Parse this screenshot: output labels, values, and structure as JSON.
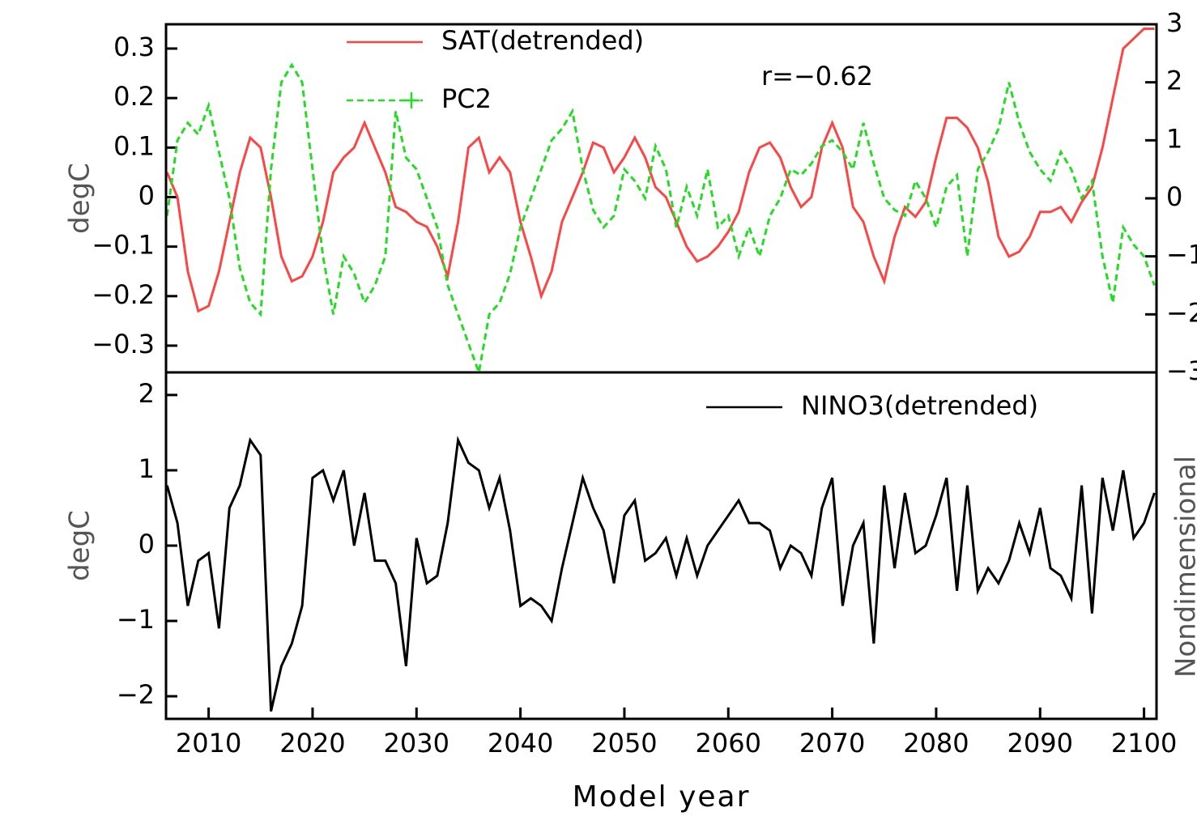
{
  "chart_data": [
    {
      "type": "line",
      "ylabel": "degC",
      "y2label": "Nondimensional",
      "annotation": "r=−0.62",
      "x": [
        2006,
        2007,
        2008,
        2009,
        2010,
        2011,
        2012,
        2013,
        2014,
        2015,
        2016,
        2017,
        2018,
        2019,
        2020,
        2021,
        2022,
        2023,
        2024,
        2025,
        2026,
        2027,
        2028,
        2029,
        2030,
        2031,
        2032,
        2033,
        2034,
        2035,
        2036,
        2037,
        2038,
        2039,
        2040,
        2041,
        2042,
        2043,
        2044,
        2045,
        2046,
        2047,
        2048,
        2049,
        2050,
        2051,
        2052,
        2053,
        2054,
        2055,
        2056,
        2057,
        2058,
        2059,
        2060,
        2061,
        2062,
        2063,
        2064,
        2065,
        2066,
        2067,
        2068,
        2069,
        2070,
        2071,
        2072,
        2073,
        2074,
        2075,
        2076,
        2077,
        2078,
        2079,
        2080,
        2081,
        2082,
        2083,
        2084,
        2085,
        2086,
        2087,
        2088,
        2089,
        2090,
        2091,
        2092,
        2093,
        2094,
        2095,
        2096,
        2097,
        2098,
        2099,
        2100,
        2101
      ],
      "xlim": [
        2005.9,
        2101.2
      ],
      "ylim": [
        -0.354,
        0.349
      ],
      "yticks": [
        0.3,
        0.2,
        0.1,
        0,
        {
          "value": -0.1,
          "label": "−0.1"
        },
        {
          "value": -0.2,
          "label": "−0.2"
        },
        {
          "value": -0.3,
          "label": "−0.3"
        }
      ],
      "y2lim": [
        -3,
        3
      ],
      "y2ticks": [
        3,
        2,
        1,
        0,
        {
          "value": -1,
          "label": "−1"
        },
        {
          "value": -2,
          "label": "−2"
        },
        {
          "value": -3,
          "label": "−3"
        }
      ],
      "legend": "top-left",
      "series": [
        {
          "name": "SAT(detrended)",
          "color": "#ff4444",
          "style": "solid",
          "values": [
            0.05,
            0.0,
            -0.15,
            -0.23,
            -0.22,
            -0.15,
            -0.05,
            0.05,
            0.12,
            0.1,
            0.0,
            -0.12,
            -0.17,
            -0.16,
            -0.12,
            -0.05,
            0.05,
            0.08,
            0.1,
            0.15,
            0.1,
            0.05,
            -0.02,
            -0.03,
            -0.05,
            -0.06,
            -0.1,
            -0.16,
            -0.05,
            0.1,
            0.12,
            0.05,
            0.08,
            0.05,
            -0.05,
            -0.12,
            -0.2,
            -0.15,
            -0.05,
            0.0,
            0.05,
            0.11,
            0.1,
            0.05,
            0.08,
            0.12,
            0.08,
            0.02,
            0.0,
            -0.05,
            -0.1,
            -0.13,
            -0.12,
            -0.1,
            -0.07,
            -0.03,
            0.05,
            0.1,
            0.11,
            0.08,
            0.02,
            -0.02,
            0.0,
            0.1,
            0.15,
            0.1,
            -0.02,
            -0.05,
            -0.12,
            -0.17,
            -0.08,
            -0.02,
            -0.04,
            -0.01,
            0.08,
            0.16,
            0.16,
            0.14,
            0.1,
            0.03,
            -0.08,
            -0.12,
            -0.11,
            -0.08,
            -0.03,
            -0.03,
            -0.02,
            -0.05,
            -0.01,
            0.02,
            0.1,
            0.2,
            0.3,
            0.32,
            0.34,
            0.34
          ]
        },
        {
          "name": "PC2",
          "color": "#22dd22",
          "style": "dashed",
          "marker": "+",
          "axis": "y2",
          "values": [
            -0.3,
            1.0,
            1.3,
            1.1,
            1.6,
            0.8,
            0.0,
            -1.2,
            -1.8,
            -2.0,
            0.5,
            2.0,
            2.3,
            2.0,
            0.5,
            -1.0,
            -2.0,
            -1.0,
            -1.3,
            -1.8,
            -1.5,
            -1.0,
            1.5,
            0.7,
            0.5,
            0.0,
            -0.5,
            -1.5,
            -2.0,
            -2.5,
            -3.0,
            -2.0,
            -1.8,
            -1.3,
            -0.5,
            0.0,
            0.5,
            1.0,
            1.2,
            1.5,
            0.5,
            -0.2,
            -0.5,
            -0.3,
            0.5,
            0.3,
            0.0,
            0.9,
            0.5,
            -0.5,
            0.2,
            -0.3,
            0.5,
            -0.5,
            -0.3,
            -1.0,
            -0.5,
            -1.0,
            -0.3,
            0.0,
            0.5,
            0.4,
            0.6,
            0.9,
            1.0,
            0.8,
            0.5,
            1.3,
            0.6,
            0.0,
            -0.2,
            -0.3,
            0.3,
            0.0,
            -0.5,
            0.2,
            0.4,
            -1.0,
            0.5,
            0.8,
            1.2,
            2.0,
            1.3,
            0.8,
            0.5,
            0.3,
            0.8,
            0.5,
            0.0,
            0.3,
            -1.0,
            -1.8,
            -0.5,
            -0.8,
            -1.0,
            -1.5
          ]
        }
      ]
    },
    {
      "type": "line",
      "ylabel": "degC",
      "xlabel": "Model year",
      "x": [
        2006,
        2007,
        2008,
        2009,
        2010,
        2011,
        2012,
        2013,
        2014,
        2015,
        2016,
        2017,
        2018,
        2019,
        2020,
        2021,
        2022,
        2023,
        2024,
        2025,
        2026,
        2027,
        2028,
        2029,
        2030,
        2031,
        2032,
        2033,
        2034,
        2035,
        2036,
        2037,
        2038,
        2039,
        2040,
        2041,
        2042,
        2043,
        2044,
        2045,
        2046,
        2047,
        2048,
        2049,
        2050,
        2051,
        2052,
        2053,
        2054,
        2055,
        2056,
        2057,
        2058,
        2059,
        2060,
        2061,
        2062,
        2063,
        2064,
        2065,
        2066,
        2067,
        2068,
        2069,
        2070,
        2071,
        2072,
        2073,
        2074,
        2075,
        2076,
        2077,
        2078,
        2079,
        2080,
        2081,
        2082,
        2083,
        2084,
        2085,
        2086,
        2087,
        2088,
        2089,
        2090,
        2091,
        2092,
        2093,
        2094,
        2095,
        2096,
        2097,
        2098,
        2099,
        2100,
        2101
      ],
      "xlim": [
        2005.9,
        2101.2
      ],
      "xticks": [
        2010,
        2020,
        2030,
        2040,
        2050,
        2060,
        2070,
        2080,
        2090,
        2100
      ],
      "ylim": [
        -2.3,
        2.3
      ],
      "yticks": [
        2,
        1,
        0,
        {
          "value": -1,
          "label": "−1"
        },
        {
          "value": -2,
          "label": "−2"
        }
      ],
      "legend": "top-right",
      "series": [
        {
          "name": "NINO3(detrended)",
          "color": "#000000",
          "style": "solid",
          "values": [
            0.8,
            0.3,
            -0.8,
            -0.2,
            -0.1,
            -1.1,
            0.5,
            0.8,
            1.4,
            1.2,
            -2.2,
            -1.6,
            -1.3,
            -0.8,
            0.9,
            1.0,
            0.6,
            1.0,
            0.0,
            0.7,
            -0.2,
            -0.2,
            -0.5,
            -1.6,
            0.1,
            -0.5,
            -0.4,
            0.3,
            1.4,
            1.1,
            1.0,
            0.5,
            0.9,
            0.2,
            -0.8,
            -0.7,
            -0.8,
            -1.0,
            -0.3,
            0.3,
            0.9,
            0.5,
            0.2,
            -0.5,
            0.4,
            0.6,
            -0.2,
            -0.1,
            0.1,
            -0.4,
            0.1,
            -0.4,
            0.0,
            0.2,
            0.4,
            0.6,
            0.3,
            0.3,
            0.2,
            -0.3,
            0.0,
            -0.1,
            -0.4,
            0.5,
            0.9,
            -0.8,
            0.0,
            0.3,
            -1.3,
            0.8,
            -0.3,
            0.7,
            -0.1,
            0.0,
            0.4,
            0.9,
            -0.6,
            0.8,
            -0.6,
            -0.3,
            -0.5,
            -0.2,
            0.3,
            -0.1,
            0.5,
            -0.3,
            -0.4,
            -0.7,
            0.8,
            -0.9,
            0.9,
            0.2,
            1.0,
            0.1,
            0.3,
            0.7
          ]
        }
      ]
    }
  ]
}
